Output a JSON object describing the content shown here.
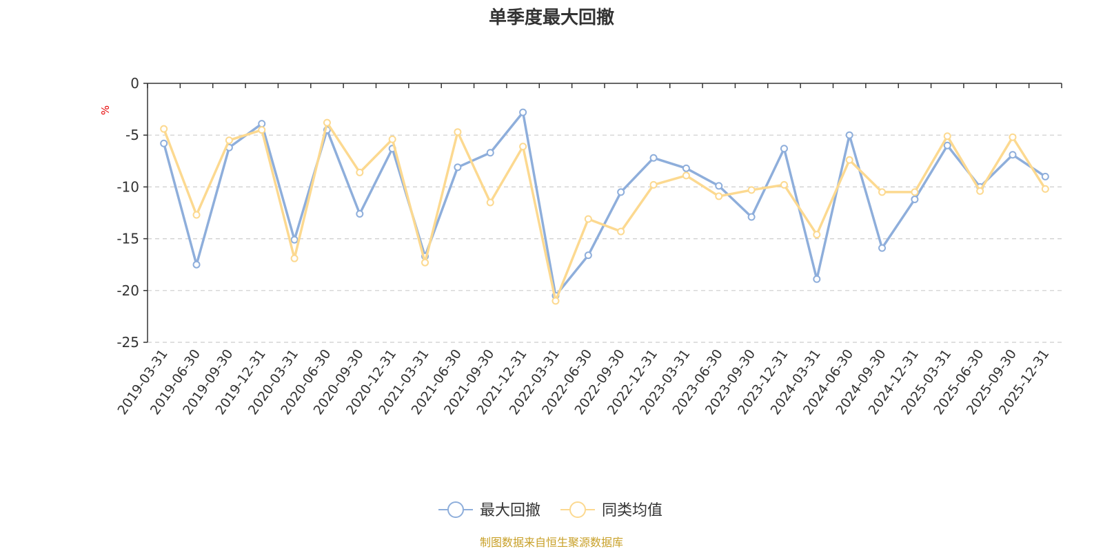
{
  "chart_data": {
    "type": "line",
    "title": "单季度最大回撤",
    "unit_label": "%",
    "source": "制图数据来自恒生聚源数据库",
    "categories": [
      "2019-03-31",
      "2019-06-30",
      "2019-09-30",
      "2019-12-31",
      "2020-03-31",
      "2020-06-30",
      "2020-09-30",
      "2020-12-31",
      "2021-03-31",
      "2021-06-30",
      "2021-09-30",
      "2021-12-31",
      "2022-03-31",
      "2022-06-30",
      "2022-09-30",
      "2022-12-31",
      "2023-03-31",
      "2023-06-30",
      "2023-09-30",
      "2023-12-31",
      "2024-03-31",
      "2024-06-30",
      "2024-09-30",
      "2024-12-31",
      "2025-03-31",
      "2025-06-30",
      "2025-09-30",
      "2025-12-31"
    ],
    "ylim": [
      -25,
      0
    ],
    "yticks": [
      "0",
      "-5",
      "-10",
      "-15",
      "-20",
      "-25"
    ],
    "grid": true,
    "legend_position": "bottom-center",
    "series": [
      {
        "name": "最大回撤",
        "color": "#8eaedb",
        "values": [
          -5.8,
          -17.5,
          -6.2,
          -3.9,
          -15.1,
          -4.5,
          -12.6,
          -6.3,
          -16.7,
          -8.1,
          -6.7,
          -2.8,
          -20.5,
          -16.6,
          -10.5,
          -7.2,
          -8.2,
          -9.9,
          -12.9,
          -6.3,
          -18.9,
          -5.0,
          -15.9,
          -11.2,
          -6.0,
          -10.0,
          -6.9,
          -9.0
        ]
      },
      {
        "name": "同类均值",
        "color": "#fcd990",
        "values": [
          -4.4,
          -12.7,
          -5.5,
          -4.5,
          -16.9,
          -3.8,
          -8.6,
          -5.4,
          -17.3,
          -4.7,
          -11.5,
          -6.1,
          -21.0,
          -13.1,
          -14.3,
          -9.8,
          -8.9,
          -10.9,
          -10.3,
          -9.8,
          -14.6,
          -7.4,
          -10.5,
          -10.5,
          -5.1,
          -10.4,
          -5.2,
          -10.2
        ]
      }
    ]
  }
}
